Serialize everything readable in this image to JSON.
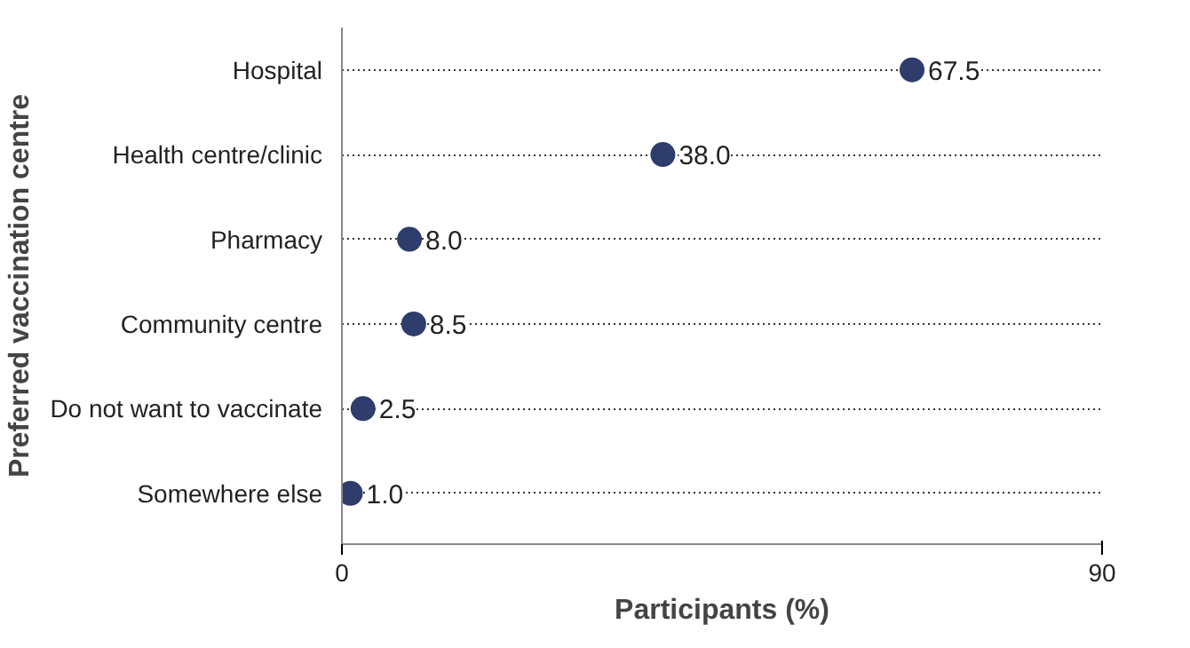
{
  "chart_data": {
    "type": "scatter",
    "orientation": "horizontal",
    "xlabel": "Participants (%)",
    "ylabel": "Preferred vaccination centre",
    "categories": [
      "Hospital",
      "Health centre/clinic",
      "Pharmacy",
      "Community centre",
      "Do not want to vaccinate",
      "Somewhere else"
    ],
    "series": [
      {
        "color": "#2e3d6b",
        "values": [
          67.5,
          38.0,
          8.0,
          8.5,
          2.5,
          1.0
        ]
      }
    ],
    "value_labels": [
      "67.5",
      "38.0",
      "8.0",
      "8.5",
      "2.5",
      "1.0"
    ],
    "xlim": [
      0,
      90
    ],
    "xticks": [
      0,
      90
    ],
    "grid": "y",
    "marker": "circle"
  }
}
